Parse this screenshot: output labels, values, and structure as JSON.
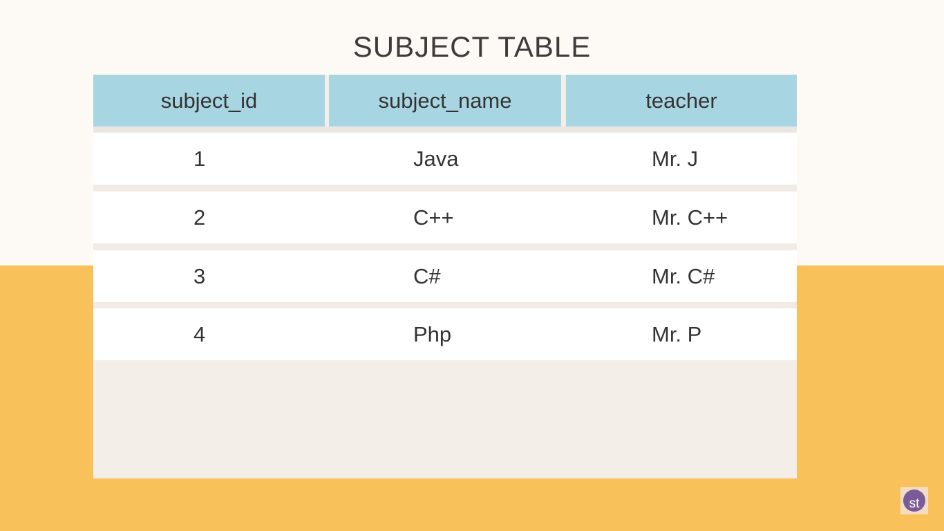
{
  "title": "SUBJECT TABLE",
  "colors": {
    "background_top": "#fdf9f4",
    "background_bottom": "#f8c15a",
    "header_fill": "#a8d5e2",
    "table_body": "#ffffff",
    "logo_circle": "#7a5b9a"
  },
  "table": {
    "columns": [
      "subject_id",
      "subject_name",
      "teacher"
    ],
    "rows": [
      [
        "1",
        "Java",
        "Mr. J"
      ],
      [
        "2",
        "C++",
        "Mr. C++"
      ],
      [
        "3",
        "C#",
        "Mr. C#"
      ],
      [
        "4",
        "Php",
        "Mr. P"
      ]
    ]
  },
  "logo": {
    "icon": "studytonight-logo-icon",
    "text": "st"
  }
}
